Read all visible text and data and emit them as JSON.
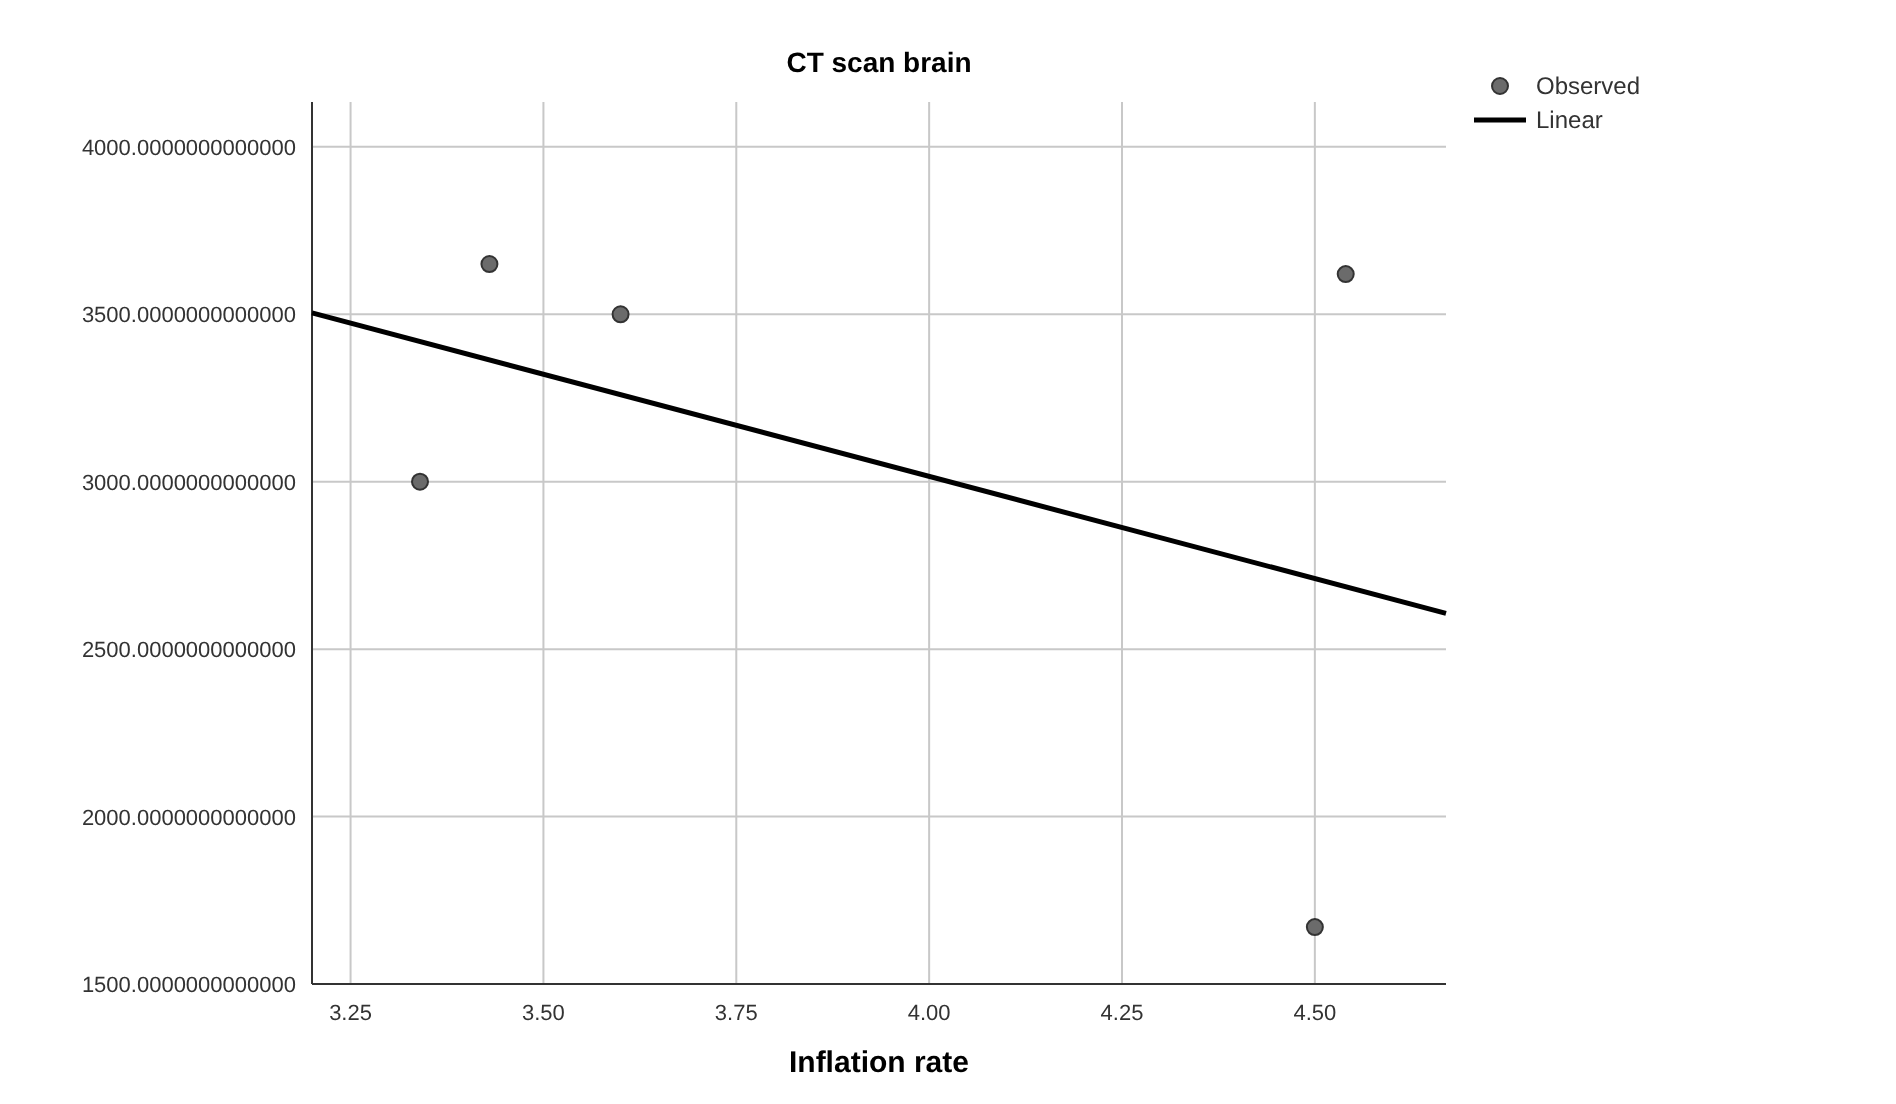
{
  "chart_data": {
    "type": "scatter",
    "title": "CT scan brain",
    "xlabel": "Inflation rate",
    "xlim": [
      3.2,
      4.67
    ],
    "xticks": [
      {
        "value": 3.25,
        "label": "3.25"
      },
      {
        "value": 3.5,
        "label": "3.50"
      },
      {
        "value": 3.75,
        "label": "3.75"
      },
      {
        "value": 4,
        "label": "4.00"
      },
      {
        "value": 4.25,
        "label": "4.25"
      },
      {
        "value": 4.5,
        "label": "4.50"
      }
    ],
    "ylim": [
      1500,
      4134
    ],
    "yticks": [
      {
        "value": 1500,
        "label": "1500.0000000000000"
      },
      {
        "value": 2000,
        "label": "2000.0000000000000"
      },
      {
        "value": 2500,
        "label": "2500.0000000000000"
      },
      {
        "value": 3000,
        "label": "3000.0000000000000"
      },
      {
        "value": 3500,
        "label": "3500.0000000000000"
      },
      {
        "value": 4000,
        "label": "4000.0000000000000"
      }
    ],
    "grid": true,
    "legend": "top right",
    "marker": "circle",
    "series": [
      {
        "name": "Observed",
        "color": "#6b6b6b",
        "x": [
          3.34,
          3.43,
          3.6,
          4.5,
          4.54
        ],
        "values": [
          3000,
          3650,
          3500,
          1670,
          3620
        ]
      },
      {
        "name": "Linear",
        "type": "line",
        "color": "#000000",
        "line_style": "solid",
        "marker": "none",
        "x": [
          3.2,
          4.67
        ],
        "values": [
          3504,
          2607
        ]
      }
    ]
  }
}
